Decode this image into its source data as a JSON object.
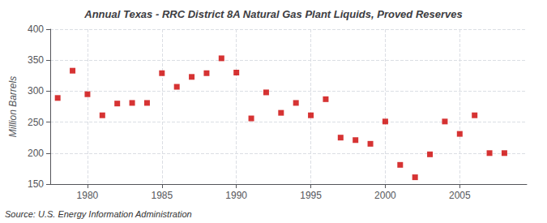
{
  "chart_data": {
    "type": "scatter",
    "title": "Annual Texas - RRC District 8A Natural Gas Plant Liquids, Proved Reserves",
    "ylabel": "Million Barrels",
    "annotation": "Source: U.S. Energy Information Administration",
    "x": [
      1978,
      1979,
      1980,
      1981,
      1982,
      1983,
      1984,
      1985,
      1986,
      1987,
      1988,
      1989,
      1990,
      1991,
      1992,
      1993,
      1994,
      1995,
      1996,
      1997,
      1998,
      1999,
      2000,
      2001,
      2002,
      2003,
      2004,
      2005,
      2006,
      2007,
      2008
    ],
    "values": [
      289,
      333,
      295,
      261,
      280,
      281,
      281,
      329,
      307,
      323,
      329,
      353,
      330,
      256,
      298,
      265,
      281,
      261,
      287,
      225,
      221,
      215,
      251,
      181,
      161,
      198,
      251,
      231,
      261,
      200,
      200
    ],
    "color": "#cc0000",
    "marker": "square",
    "xlim": [
      1977.5,
      2009.5
    ],
    "xticks": [
      1980,
      1985,
      1990,
      1995,
      2000,
      2005
    ],
    "ylim": [
      150,
      400
    ],
    "yticks": [
      150,
      200,
      250,
      300,
      350,
      400
    ],
    "grid": true
  }
}
